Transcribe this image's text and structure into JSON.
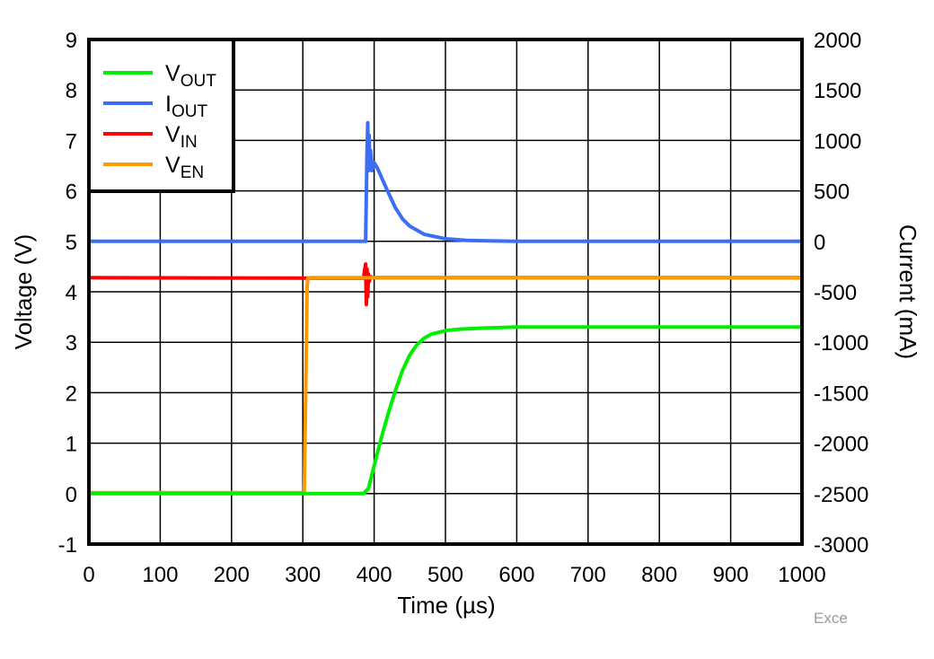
{
  "chart_data": {
    "type": "line",
    "title": "",
    "xlabel": "Time (µs)",
    "ylabel": "Voltage (V)",
    "y2label": "Current (mA)",
    "xlim": [
      0,
      1000
    ],
    "ylim": [
      -1,
      9
    ],
    "y2lim": [
      -3000,
      2000
    ],
    "grid": true,
    "legend_position": "upper-left",
    "x_ticks": [
      0,
      100,
      200,
      300,
      400,
      500,
      600,
      700,
      800,
      900,
      1000
    ],
    "y_ticks": [
      -1,
      0,
      1,
      2,
      3,
      4,
      5,
      6,
      7,
      8,
      9
    ],
    "y2_ticks": [
      -3000,
      -2500,
      -2000,
      -1500,
      -1000,
      -500,
      0,
      500,
      1000,
      1500,
      2000
    ],
    "series": [
      {
        "name": "VOUT",
        "main": "V",
        "sub": "OUT",
        "axis": "left",
        "color": "#00ee00",
        "x": [
          0,
          385,
          392,
          400,
          410,
          420,
          430,
          440,
          450,
          460,
          470,
          480,
          500,
          520,
          550,
          600,
          700,
          800,
          900,
          1000
        ],
        "values": [
          0,
          0,
          0.1,
          0.55,
          1.1,
          1.6,
          2.05,
          2.45,
          2.75,
          2.95,
          3.08,
          3.16,
          3.23,
          3.26,
          3.28,
          3.3,
          3.3,
          3.3,
          3.3,
          3.3
        ]
      },
      {
        "name": "IOUT",
        "main": "I",
        "sub": "OUT",
        "axis": "right",
        "color": "#3b6ef5",
        "x": [
          0,
          388,
          389,
          390,
          391,
          392,
          393,
          394,
          395,
          397,
          400,
          405,
          410,
          420,
          430,
          440,
          450,
          470,
          500,
          530,
          560,
          600,
          700,
          800,
          900,
          1000
        ],
        "values": [
          0,
          0,
          450,
          900,
          1175,
          700,
          1050,
          750,
          900,
          700,
          780,
          720,
          640,
          480,
          330,
          220,
          150,
          70,
          25,
          10,
          5,
          0,
          0,
          0,
          0,
          0
        ]
      },
      {
        "name": "VIN",
        "main": "V",
        "sub": "IN",
        "axis": "left",
        "color": "#ff0000",
        "x": [
          0,
          300,
          385,
          388,
          389,
          390,
          391,
          392,
          393,
          395,
          398,
          1000
        ],
        "values": [
          4.28,
          4.27,
          4.27,
          4.55,
          3.75,
          4.45,
          3.9,
          4.35,
          4.2,
          4.3,
          4.28,
          4.28
        ]
      },
      {
        "name": "VEN",
        "main": "V",
        "sub": "EN",
        "axis": "left",
        "color": "#ff9900",
        "x": [
          0,
          300,
          302,
          303,
          304,
          305,
          306,
          307,
          310,
          1000
        ],
        "values": [
          0.02,
          0.02,
          0.02,
          1.0,
          2.0,
          3.0,
          4.1,
          4.27,
          4.28,
          4.28
        ]
      }
    ]
  },
  "labels": {
    "xlabel": "Time (µs)",
    "ylabel": "Voltage (V)",
    "y2label": "Current (mA)",
    "watermark": "Exce"
  }
}
